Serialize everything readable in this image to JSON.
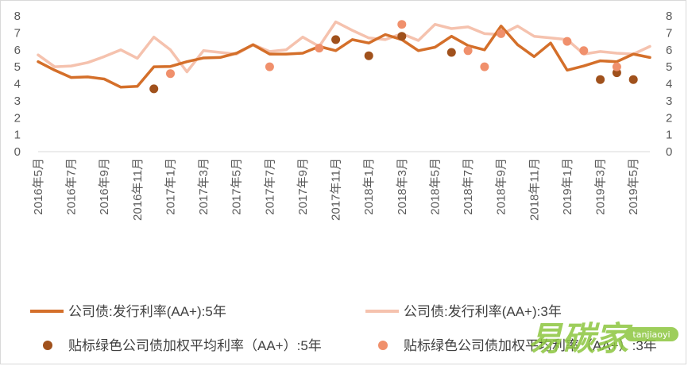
{
  "chart_data": {
    "type": "line",
    "title": "",
    "xlabel": "",
    "ylabel": "",
    "ylim": [
      0,
      8
    ],
    "yticks": [
      0,
      1,
      2,
      3,
      4,
      5,
      6,
      7,
      8
    ],
    "y2ticks": [
      0,
      1,
      2,
      3,
      4,
      5,
      6,
      7,
      8
    ],
    "grid": false,
    "legend_position": "bottom",
    "x_start": "2016-05",
    "x_tick_labels": [
      "2016年5月",
      "2016年7月",
      "2016年9月",
      "2016年11月",
      "2017年1月",
      "2017年3月",
      "2017年5月",
      "2017年7月",
      "2017年9月",
      "2017年11月",
      "2018年1月",
      "2018年3月",
      "2018年5月",
      "2018年7月",
      "2018年9月",
      "2018年11月",
      "2019年1月",
      "2019年3月",
      "2019年5月"
    ],
    "series": [
      {
        "name": "公司债:发行利率(AA+):5年",
        "kind": "line",
        "color": "#d46f2a",
        "values": [
          5.3,
          4.8,
          4.37,
          4.4,
          4.28,
          3.8,
          3.85,
          5.0,
          5.02,
          5.3,
          5.52,
          5.55,
          5.8,
          6.3,
          5.75,
          5.75,
          5.8,
          6.2,
          5.95,
          6.6,
          6.4,
          6.9,
          6.6,
          5.95,
          6.15,
          6.8,
          6.25,
          6.0,
          7.4,
          6.3,
          5.6,
          6.4,
          4.8,
          5.05,
          5.35,
          5.3,
          5.75,
          5.55
        ]
      },
      {
        "name": "公司债:发行利率(AA+):3年",
        "kind": "line",
        "color": "#f5c2ae",
        "values": [
          5.7,
          5.0,
          5.05,
          5.25,
          5.6,
          6.0,
          5.5,
          6.75,
          6.0,
          4.7,
          5.95,
          5.85,
          5.75,
          6.3,
          5.9,
          6.0,
          6.75,
          6.2,
          7.65,
          7.15,
          6.7,
          6.6,
          6.95,
          6.55,
          7.5,
          7.25,
          7.35,
          6.95,
          6.9,
          7.4,
          6.8,
          6.7,
          6.6,
          5.75,
          5.9,
          5.8,
          5.75,
          6.2
        ]
      },
      {
        "name": "贴标绿色公司债加权平均利率（AA+）:5年",
        "kind": "scatter",
        "color": "#a0511c",
        "points": [
          [
            7,
            3.7
          ],
          [
            18,
            6.6
          ],
          [
            20,
            5.65
          ],
          [
            22,
            6.8
          ],
          [
            25,
            5.85
          ],
          [
            34,
            4.25
          ],
          [
            35,
            4.65
          ],
          [
            36,
            4.25
          ]
        ]
      },
      {
        "name": "贴标绿色公司债加权平均利率（AA+）:3年",
        "kind": "scatter",
        "color": "#f0906c",
        "points": [
          [
            8,
            4.6
          ],
          [
            14,
            5.0
          ],
          [
            17,
            6.1
          ],
          [
            22,
            7.5
          ],
          [
            26,
            5.95
          ],
          [
            27,
            5.0
          ],
          [
            28,
            6.95
          ],
          [
            32,
            6.5
          ],
          [
            33,
            5.95
          ],
          [
            35,
            5.0
          ]
        ]
      }
    ]
  },
  "watermark": {
    "brand_chinese": "易碳家",
    "brand_pinyin": "tanjiaoyi",
    "color": "#8cc63f"
  }
}
